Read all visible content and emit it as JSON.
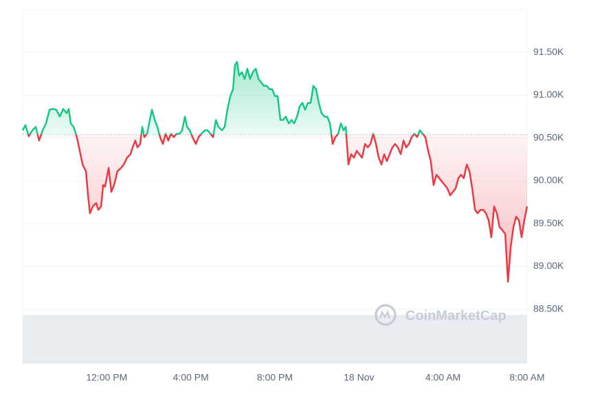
{
  "chart_data": {
    "type": "line",
    "watermark": "CoinMarketCap",
    "up_color": "#16c784",
    "down_color": "#ea3943",
    "reference_value": 90540,
    "xlim": [
      8,
      32
    ],
    "ylim": [
      87870,
      92000
    ],
    "grid": true,
    "xticks": [
      {
        "value": 12,
        "label": "12:00 PM"
      },
      {
        "value": 16,
        "label": "4:00 PM"
      },
      {
        "value": 20,
        "label": "8:00 PM"
      },
      {
        "value": 24,
        "label": "18 Nov"
      },
      {
        "value": 28,
        "label": "4:00 AM"
      },
      {
        "value": 32,
        "label": "8:00 AM"
      }
    ],
    "yticks": [
      {
        "value": 88500,
        "label": "88.50K"
      },
      {
        "value": 89000,
        "label": "89.00K"
      },
      {
        "value": 89500,
        "label": "89.50K"
      },
      {
        "value": 90000,
        "label": "90.00K"
      },
      {
        "value": 90500,
        "label": "90.50K"
      },
      {
        "value": 91000,
        "label": "91.00K"
      },
      {
        "value": 91500,
        "label": "91.50K"
      }
    ],
    "x": [
      8.0,
      8.13,
      8.29,
      8.46,
      8.62,
      8.78,
      8.95,
      9.11,
      9.28,
      9.44,
      9.6,
      9.77,
      9.93,
      10.09,
      10.19,
      10.29,
      10.42,
      10.58,
      10.68,
      10.85,
      11.01,
      11.11,
      11.2,
      11.34,
      11.5,
      11.6,
      11.73,
      11.83,
      11.92,
      12.09,
      12.22,
      12.35,
      12.51,
      12.68,
      12.81,
      12.97,
      13.13,
      13.23,
      13.36,
      13.46,
      13.59,
      13.69,
      13.79,
      13.92,
      14.05,
      14.15,
      14.28,
      14.41,
      14.54,
      14.67,
      14.8,
      14.93,
      15.06,
      15.19,
      15.33,
      15.46,
      15.59,
      15.72,
      15.82,
      15.95,
      16.08,
      16.24,
      16.37,
      16.5,
      16.67,
      16.8,
      16.93,
      17.06,
      17.19,
      17.32,
      17.48,
      17.61,
      17.74,
      17.88,
      18.01,
      18.1,
      18.2,
      18.3,
      18.43,
      18.56,
      18.69,
      18.82,
      18.95,
      19.09,
      19.22,
      19.35,
      19.48,
      19.61,
      19.74,
      19.87,
      20.0,
      20.13,
      20.26,
      20.39,
      20.52,
      20.66,
      20.79,
      20.92,
      21.05,
      21.18,
      21.31,
      21.44,
      21.57,
      21.7,
      21.83,
      21.96,
      22.09,
      22.22,
      22.36,
      22.49,
      22.62,
      22.75,
      22.88,
      23.01,
      23.14,
      23.27,
      23.37,
      23.5,
      23.63,
      23.76,
      23.89,
      24.02,
      24.15,
      24.29,
      24.42,
      24.55,
      24.68,
      24.81,
      24.94,
      25.07,
      25.2,
      25.33,
      25.46,
      25.59,
      25.72,
      25.85,
      25.99,
      26.12,
      26.25,
      26.38,
      26.51,
      26.64,
      26.77,
      26.9,
      27.03,
      27.16,
      27.29,
      27.42,
      27.55,
      27.69,
      27.82,
      27.95,
      28.08,
      28.21,
      28.34,
      28.47,
      28.6,
      28.73,
      28.86,
      28.99,
      29.13,
      29.26,
      29.39,
      29.52,
      29.65,
      29.78,
      29.91,
      30.04,
      30.17,
      30.3,
      30.43,
      30.56,
      30.69,
      30.83,
      30.96,
      31.09,
      31.22,
      31.35,
      31.48,
      31.61,
      31.74,
      31.87,
      32.0
    ],
    "values": [
      90590,
      90650,
      90520,
      90590,
      90630,
      90470,
      90590,
      90670,
      90830,
      90840,
      90830,
      90750,
      90840,
      90790,
      90840,
      90670,
      90630,
      90510,
      90390,
      90190,
      90110,
      89830,
      89620,
      89700,
      89740,
      89660,
      89700,
      89950,
      89930,
      90150,
      89870,
      89950,
      90110,
      90150,
      90190,
      90270,
      90310,
      90390,
      90470,
      90390,
      90430,
      90630,
      90510,
      90550,
      90710,
      90830,
      90710,
      90630,
      90510,
      90430,
      90550,
      90470,
      90550,
      90510,
      90550,
      90550,
      90590,
      90750,
      90630,
      90590,
      90510,
      90430,
      90510,
      90550,
      90590,
      90590,
      90550,
      90510,
      90710,
      90630,
      90590,
      90630,
      90830,
      90990,
      91070,
      91350,
      91390,
      91230,
      91270,
      91190,
      91310,
      91190,
      91270,
      91310,
      91190,
      91150,
      91110,
      91110,
      91070,
      91070,
      90990,
      90990,
      90710,
      90710,
      90750,
      90670,
      90710,
      90670,
      90750,
      90870,
      90910,
      90830,
      90910,
      90910,
      91110,
      91070,
      90910,
      90790,
      90750,
      90750,
      90670,
      90430,
      90510,
      90550,
      90670,
      90590,
      90630,
      90190,
      90310,
      90270,
      90350,
      90310,
      90270,
      90430,
      90390,
      90430,
      90550,
      90430,
      90270,
      90190,
      90310,
      90230,
      90310,
      90390,
      90430,
      90390,
      90310,
      90470,
      90390,
      90430,
      90510,
      90550,
      90510,
      90590,
      90550,
      90510,
      90350,
      90230,
      89950,
      90070,
      90030,
      89990,
      89950,
      89910,
      89830,
      89870,
      89910,
      90030,
      90070,
      90030,
      90190,
      90110,
      89910,
      89660,
      89620,
      89660,
      89660,
      89620,
      89540,
      89340,
      89700,
      89620,
      89460,
      89420,
      89380,
      88820,
      89220,
      89460,
      89580,
      89540,
      89340,
      89540,
      89700
    ]
  }
}
